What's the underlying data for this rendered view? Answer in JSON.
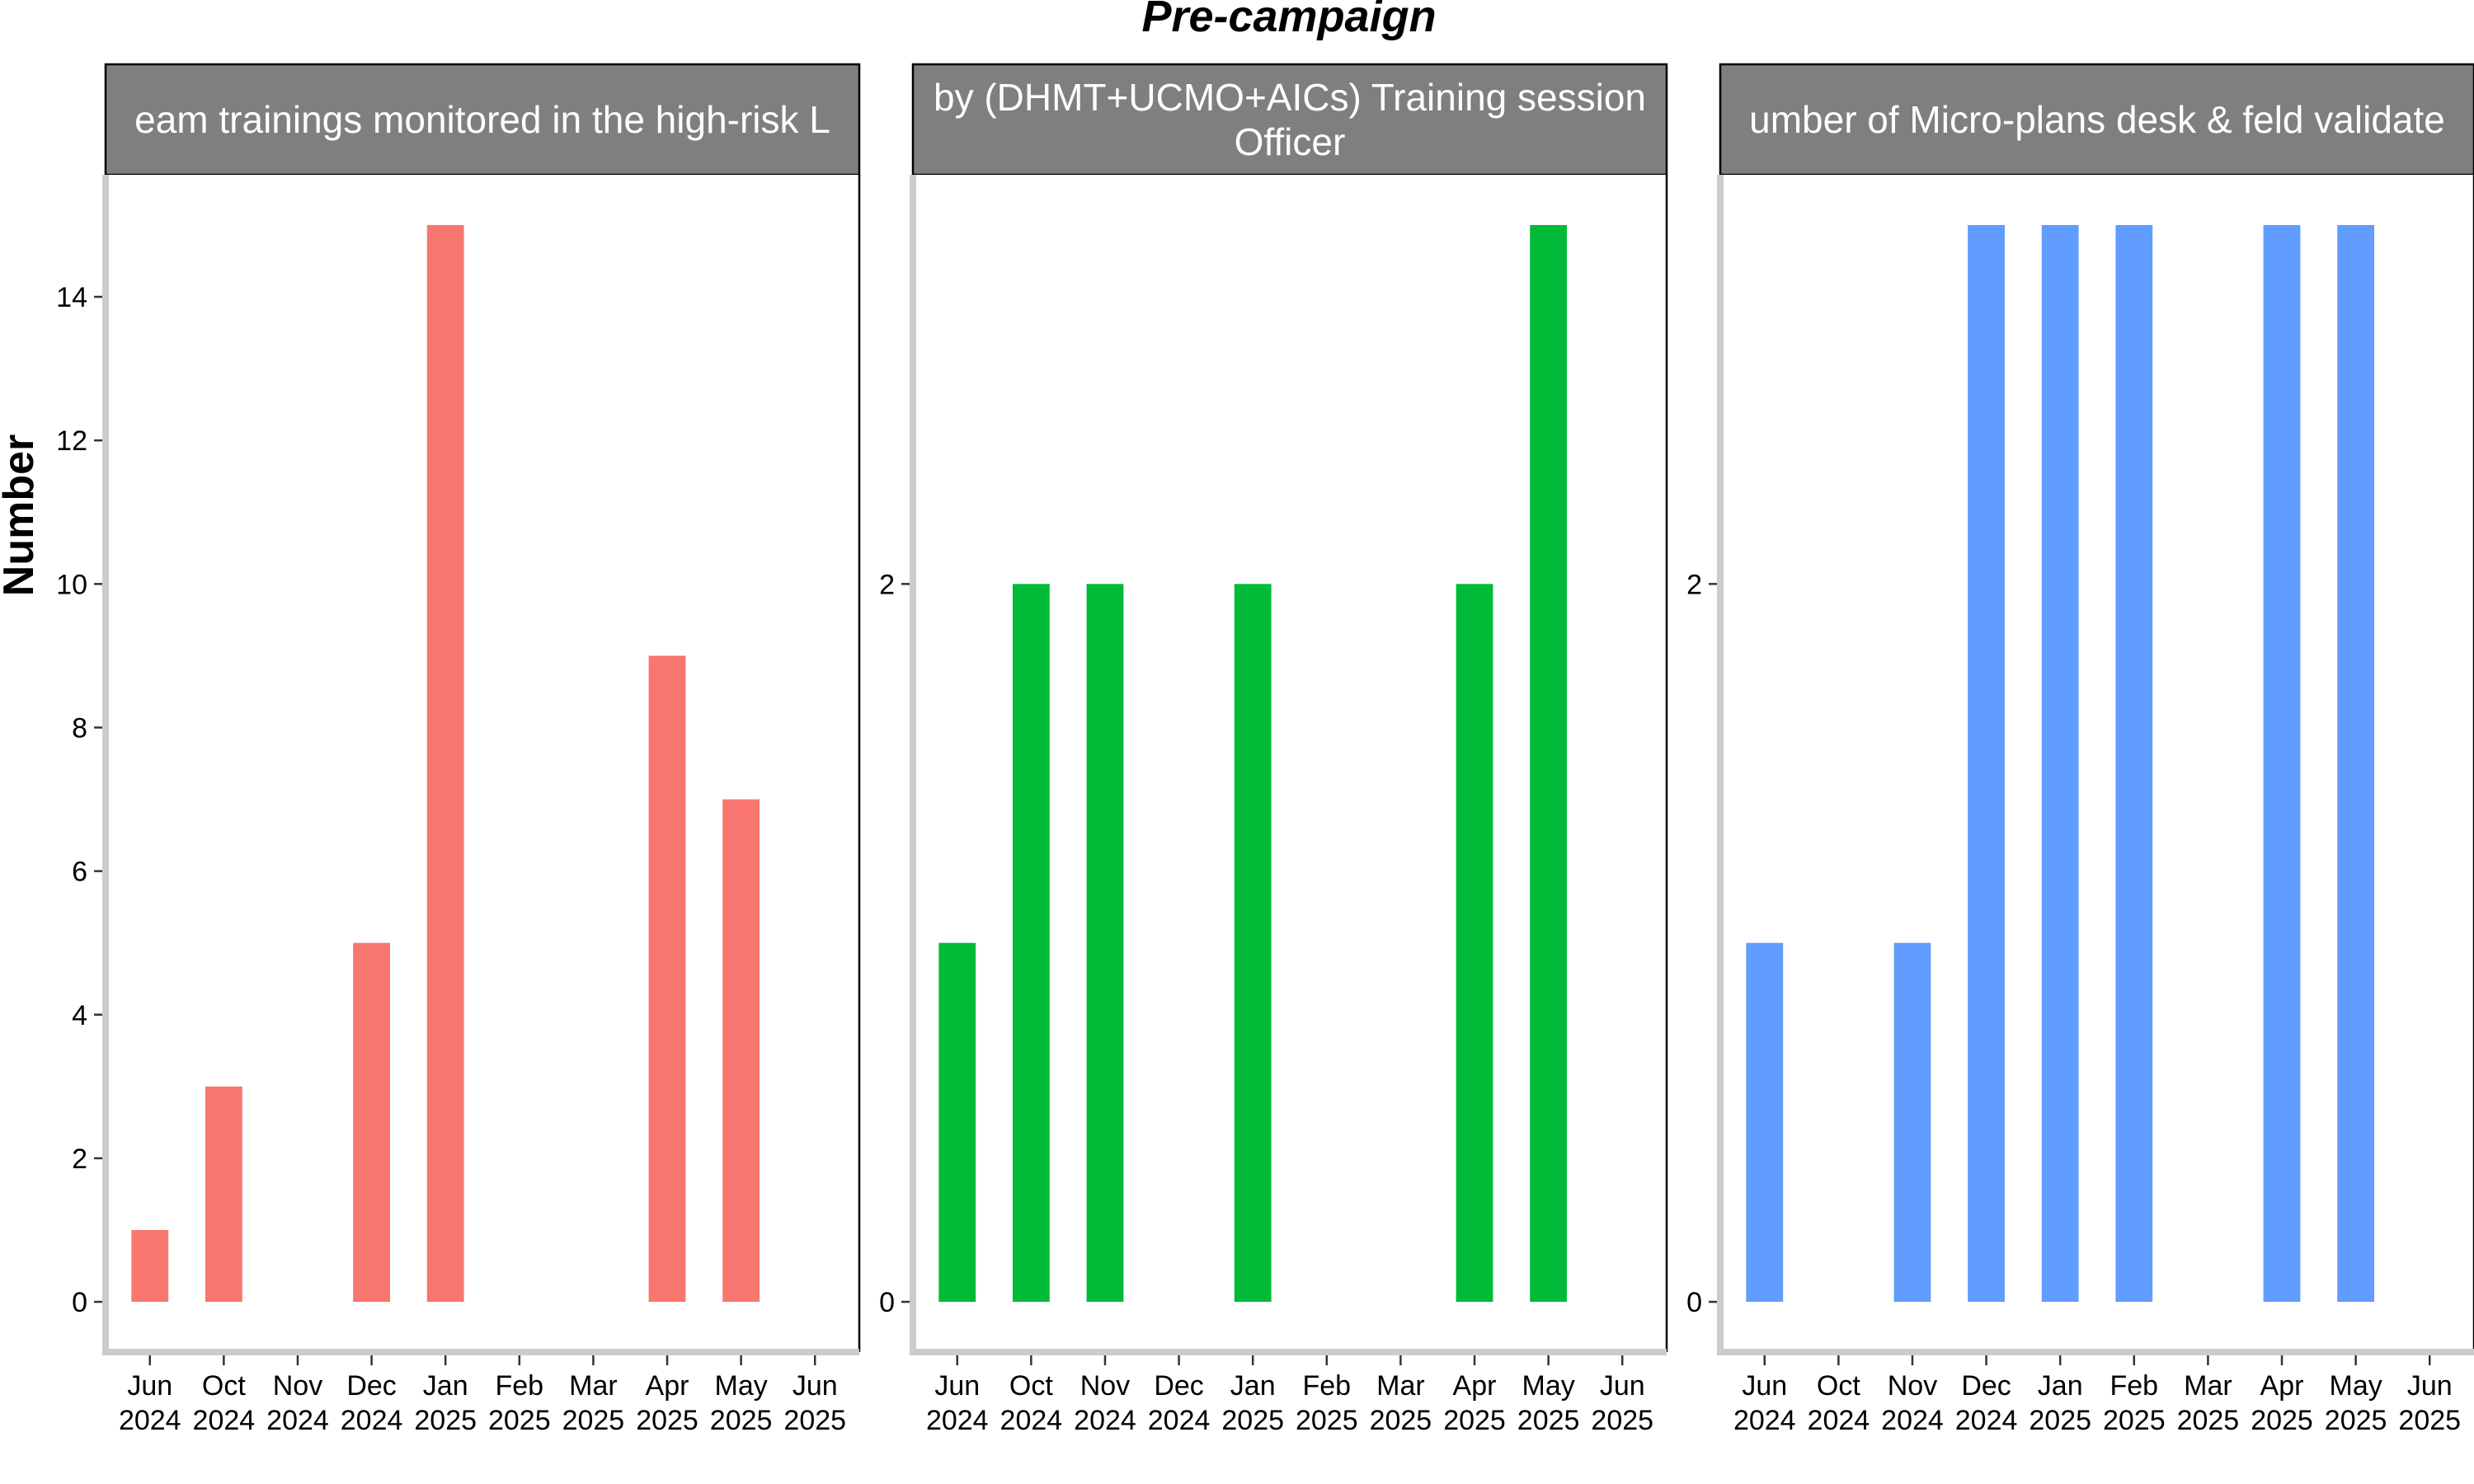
{
  "chart_data": {
    "type": "bar",
    "title": "Pre-campaign",
    "ylabel": "Number",
    "categories": [
      [
        "Jun",
        "2024"
      ],
      [
        "Oct",
        "2024"
      ],
      [
        "Nov",
        "2024"
      ],
      [
        "Dec",
        "2024"
      ],
      [
        "Jan",
        "2025"
      ],
      [
        "Feb",
        "2025"
      ],
      [
        "Mar",
        "2025"
      ],
      [
        "Apr",
        "2025"
      ],
      [
        "May",
        "2025"
      ],
      [
        "Jun",
        "2025"
      ]
    ],
    "facets": [
      {
        "strip_lines": [
          "eam trainings monitored in the high-risk L"
        ],
        "color": "#F8766D",
        "values": [
          1,
          3,
          0,
          5,
          15,
          0,
          0,
          9,
          7,
          0
        ],
        "ylim": [
          -0.7,
          15.7
        ],
        "yticks": [
          0,
          2,
          4,
          6,
          8,
          10,
          12,
          14
        ],
        "grid": false
      },
      {
        "strip_lines": [
          "by (DHMT+UCMO+AICs) Training session",
          "Officer"
        ],
        "color": "#00BA38",
        "values": [
          1,
          2,
          2,
          0,
          2,
          0,
          0,
          2,
          3,
          0
        ],
        "ylim": [
          -0.14,
          3.14
        ],
        "yticks": [
          0,
          2
        ],
        "grid": false
      },
      {
        "strip_lines": [
          "umber of Micro-plans desk & feld validate"
        ],
        "color": "#619CFF",
        "values": [
          1,
          0,
          1,
          3,
          3,
          3,
          0,
          3,
          3,
          0
        ],
        "ylim": [
          -0.14,
          3.14
        ],
        "yticks": [
          0,
          2
        ],
        "grid": false
      }
    ]
  }
}
